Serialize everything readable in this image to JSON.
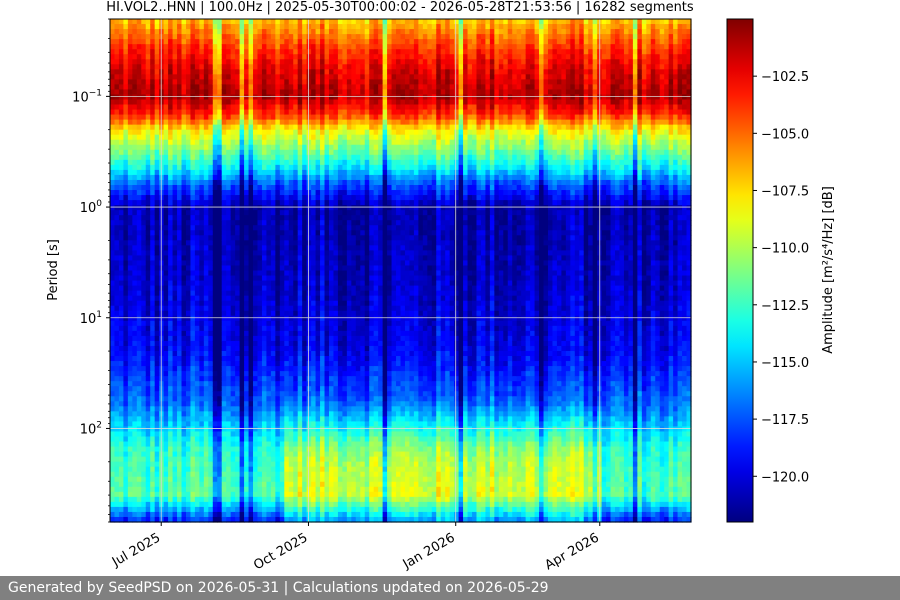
{
  "chart_data": {
    "type": "heatmap",
    "title": "HI.VOL2..HNN | 100.0Hz | 2025-05-30T00:00:02 - 2026-05-28T21:53:56 | 16282 segments",
    "ylabel": "Period [s]",
    "yscale": "log",
    "yaxis_inverted": true,
    "ylim": [
      0.02,
      700
    ],
    "y_ticks": [
      {
        "value": 0.1,
        "base": "10",
        "exp": "−1"
      },
      {
        "value": 1,
        "base": "10",
        "exp": "0"
      },
      {
        "value": 10,
        "base": "10",
        "exp": "1"
      },
      {
        "value": 100,
        "base": "10",
        "exp": "2"
      }
    ],
    "xlim": [
      "2025-05-30",
      "2026-05-28"
    ],
    "x_ticks": [
      {
        "date": "2025-07-01",
        "label": "Jul 2025"
      },
      {
        "date": "2025-10-01",
        "label": "Oct 2025"
      },
      {
        "date": "2026-01-01",
        "label": "Jan 2026"
      },
      {
        "date": "2026-04-01",
        "label": "Apr 2026"
      }
    ],
    "grid": true,
    "colorbar": {
      "label": "Amplitude [m²/s⁴/Hz] [dB]",
      "range": [
        -122,
        -100
      ],
      "ticks": [
        "−102.5",
        "−105.0",
        "−107.5",
        "−110.0",
        "−112.5",
        "−115.0",
        "−117.5",
        "−120.0"
      ],
      "tick_values": [
        -102.5,
        -105.0,
        -107.5,
        -110.0,
        -112.5,
        -115.0,
        -117.5,
        -120.0
      ],
      "colormap": "jet"
    },
    "amplitude_profile_by_period": [
      {
        "period": 0.02,
        "db": -107.0
      },
      {
        "period": 0.035,
        "db": -104.0
      },
      {
        "period": 0.06,
        "db": -102.0
      },
      {
        "period": 0.1,
        "db": -101.0
      },
      {
        "period": 0.15,
        "db": -104.0
      },
      {
        "period": 0.2,
        "db": -108.0
      },
      {
        "period": 0.3,
        "db": -111.0
      },
      {
        "period": 0.45,
        "db": -114.0
      },
      {
        "period": 0.6,
        "db": -117.0
      },
      {
        "period": 1,
        "db": -121.0
      },
      {
        "period": 5,
        "db": -120.5
      },
      {
        "period": 20,
        "db": -119.5
      },
      {
        "period": 60,
        "db": -117.0
      },
      {
        "period": 150,
        "db": -113.0
      },
      {
        "period": 400,
        "db": -112.0
      },
      {
        "period": 700,
        "db": -119.0
      }
    ]
  },
  "footer": {
    "text": "Generated by SeedPSD on 2026-05-31 | Calculations updated on 2026-05-29"
  },
  "colors": {
    "footer_bg": "#808080",
    "grid": "#d8d8d8"
  }
}
